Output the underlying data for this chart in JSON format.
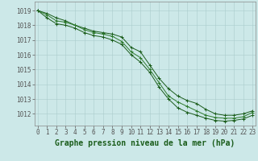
{
  "x": [
    0,
    1,
    2,
    3,
    4,
    5,
    6,
    7,
    8,
    9,
    10,
    11,
    12,
    13,
    14,
    15,
    16,
    17,
    18,
    19,
    20,
    21,
    22,
    23
  ],
  "line_max": [
    1019.0,
    1018.8,
    1018.5,
    1018.3,
    1018.0,
    1017.8,
    1017.6,
    1017.5,
    1017.4,
    1017.2,
    1016.5,
    1016.2,
    1015.3,
    1014.4,
    1013.7,
    1013.2,
    1012.9,
    1012.7,
    1012.3,
    1012.0,
    1011.9,
    1011.9,
    1012.0,
    1012.2
  ],
  "line_mean": [
    1019.0,
    1018.7,
    1018.3,
    1018.2,
    1018.0,
    1017.7,
    1017.5,
    1017.4,
    1017.25,
    1016.9,
    1016.2,
    1015.8,
    1015.0,
    1014.1,
    1013.2,
    1012.8,
    1012.5,
    1012.2,
    1011.9,
    1011.75,
    1011.7,
    1011.7,
    1011.8,
    1012.1
  ],
  "line_min": [
    1019.0,
    1018.5,
    1018.1,
    1018.0,
    1017.8,
    1017.5,
    1017.3,
    1017.2,
    1017.0,
    1016.7,
    1016.0,
    1015.5,
    1014.8,
    1013.8,
    1013.0,
    1012.4,
    1012.1,
    1011.9,
    1011.7,
    1011.55,
    1011.5,
    1011.55,
    1011.65,
    1011.9
  ],
  "bg_color": "#cce8e8",
  "grid_color": "#aacccc",
  "line_color_dark": "#1a5c1a",
  "line_color_mid": "#2d7a2d",
  "marker": "+",
  "marker_size": 3,
  "ylabel_vals": [
    1012,
    1013,
    1014,
    1015,
    1016,
    1017,
    1018,
    1019
  ],
  "xlabel": "Graphe pression niveau de la mer (hPa)",
  "ylim": [
    1011.2,
    1019.6
  ],
  "xlim": [
    -0.3,
    23.3
  ],
  "xlabel_fontsize": 7,
  "tick_fontsize": 5.5
}
